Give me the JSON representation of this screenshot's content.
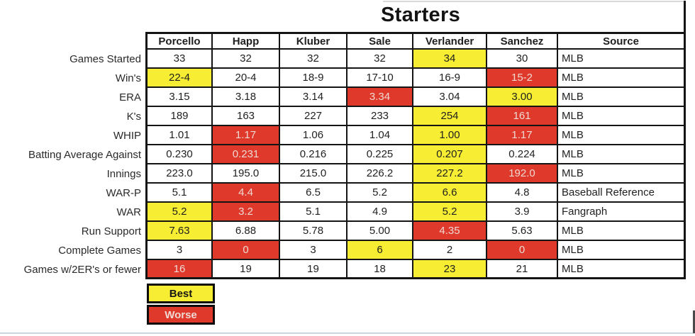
{
  "colors": {
    "best_fill": "#f7ee33",
    "worse_fill": "#de392b",
    "worse_text": "#efd9d3",
    "border": "#141414",
    "text": "#1f1f1f",
    "label_text": "#2a2a2a",
    "page_bottom_line": "#cdd7e0"
  },
  "chart_data": {
    "type": "table",
    "title": "Starters",
    "columns": [
      "Porcello",
      "Happ",
      "Kluber",
      "Sale",
      "Verlander",
      "Sanchez",
      "Source"
    ],
    "legend": {
      "best": "Best",
      "worse": "Worse"
    },
    "highlight_note": "best=yellow cell, worse=red cell; indexes refer to player columns 0-5",
    "rows": [
      {
        "label": "Games Started",
        "values": [
          "33",
          "32",
          "32",
          "32",
          "34",
          "30"
        ],
        "source": "MLB",
        "best": [
          4
        ],
        "worse": []
      },
      {
        "label": "Win's",
        "values": [
          "22-4",
          "20-4",
          "18-9",
          "17-10",
          "16-9",
          "15-2"
        ],
        "source": "MLB",
        "best": [
          0
        ],
        "worse": [
          5
        ]
      },
      {
        "label": "ERA",
        "values": [
          "3.15",
          "3.18",
          "3.14",
          "3.34",
          "3.04",
          "3.00"
        ],
        "source": "MLB",
        "best": [
          5
        ],
        "worse": [
          3
        ]
      },
      {
        "label": "K's",
        "values": [
          "189",
          "163",
          "227",
          "233",
          "254",
          "161"
        ],
        "source": "MLB",
        "best": [
          4
        ],
        "worse": [
          5
        ]
      },
      {
        "label": "WHIP",
        "values": [
          "1.01",
          "1.17",
          "1.06",
          "1.04",
          "1.00",
          "1.17"
        ],
        "source": "MLB",
        "best": [
          4
        ],
        "worse": [
          1,
          5
        ]
      },
      {
        "label": "Batting Average Against",
        "values": [
          "0.230",
          "0.231",
          "0.216",
          "0.225",
          "0.207",
          "0.224"
        ],
        "source": "MLB",
        "best": [
          4
        ],
        "worse": [
          1
        ]
      },
      {
        "label": "Innings",
        "values": [
          "223.0",
          "195.0",
          "215.0",
          "226.2",
          "227.2",
          "192.0"
        ],
        "source": "MLB",
        "best": [
          4
        ],
        "worse": [
          5
        ]
      },
      {
        "label": "WAR-P",
        "values": [
          "5.1",
          "4.4",
          "6.5",
          "5.2",
          "6.6",
          "4.8"
        ],
        "source": "Baseball Reference",
        "best": [
          4
        ],
        "worse": [
          1
        ]
      },
      {
        "label": "WAR",
        "values": [
          "5.2",
          "3.2",
          "5.1",
          "4.9",
          "5.2",
          "3.9"
        ],
        "source": "Fangraph",
        "best": [
          0,
          4
        ],
        "worse": [
          1
        ]
      },
      {
        "label": "Run Support",
        "values": [
          "7.63",
          "6.88",
          "5.78",
          "5.00",
          "4.35",
          "5.63"
        ],
        "source": "MLB",
        "best": [
          0
        ],
        "worse": [
          4
        ]
      },
      {
        "label": "Complete Games",
        "values": [
          "3",
          "0",
          "3",
          "6",
          "2",
          "0"
        ],
        "source": "MLB",
        "best": [
          3
        ],
        "worse": [
          1,
          5
        ]
      },
      {
        "label": "Games w/2ER's or fewer",
        "values": [
          "16",
          "19",
          "19",
          "18",
          "23",
          "21"
        ],
        "source": "MLB",
        "best": [
          4
        ],
        "worse": [
          0
        ]
      }
    ]
  }
}
